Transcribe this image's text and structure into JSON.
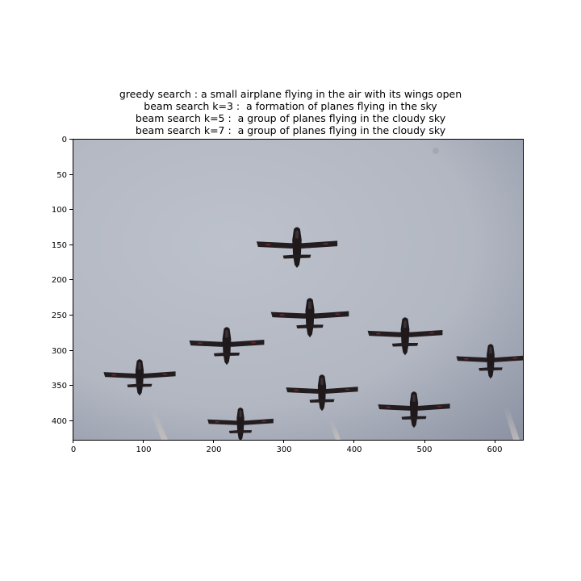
{
  "captions": [
    "greedy search : a small airplane flying in the air with its wings open",
    "beam search k=3 :  a formation of planes flying in the sky",
    "beam search k=5 :  a group of planes flying in the cloudy sky",
    "beam search k=7 :  a group of planes flying in the cloudy sky"
  ],
  "axes": {
    "x_ticks": [
      "0",
      "100",
      "200",
      "300",
      "400",
      "500",
      "600"
    ],
    "y_ticks": [
      "0",
      "50",
      "100",
      "150",
      "200",
      "250",
      "300",
      "350",
      "400"
    ]
  },
  "image": {
    "subject": "formation of nine jet aircraft silhouettes against a grey cloudy sky",
    "sky_colors": [
      "#b9bec8",
      "#a9aebb",
      "#8e94a4"
    ],
    "plane_color": "#211c1f"
  }
}
